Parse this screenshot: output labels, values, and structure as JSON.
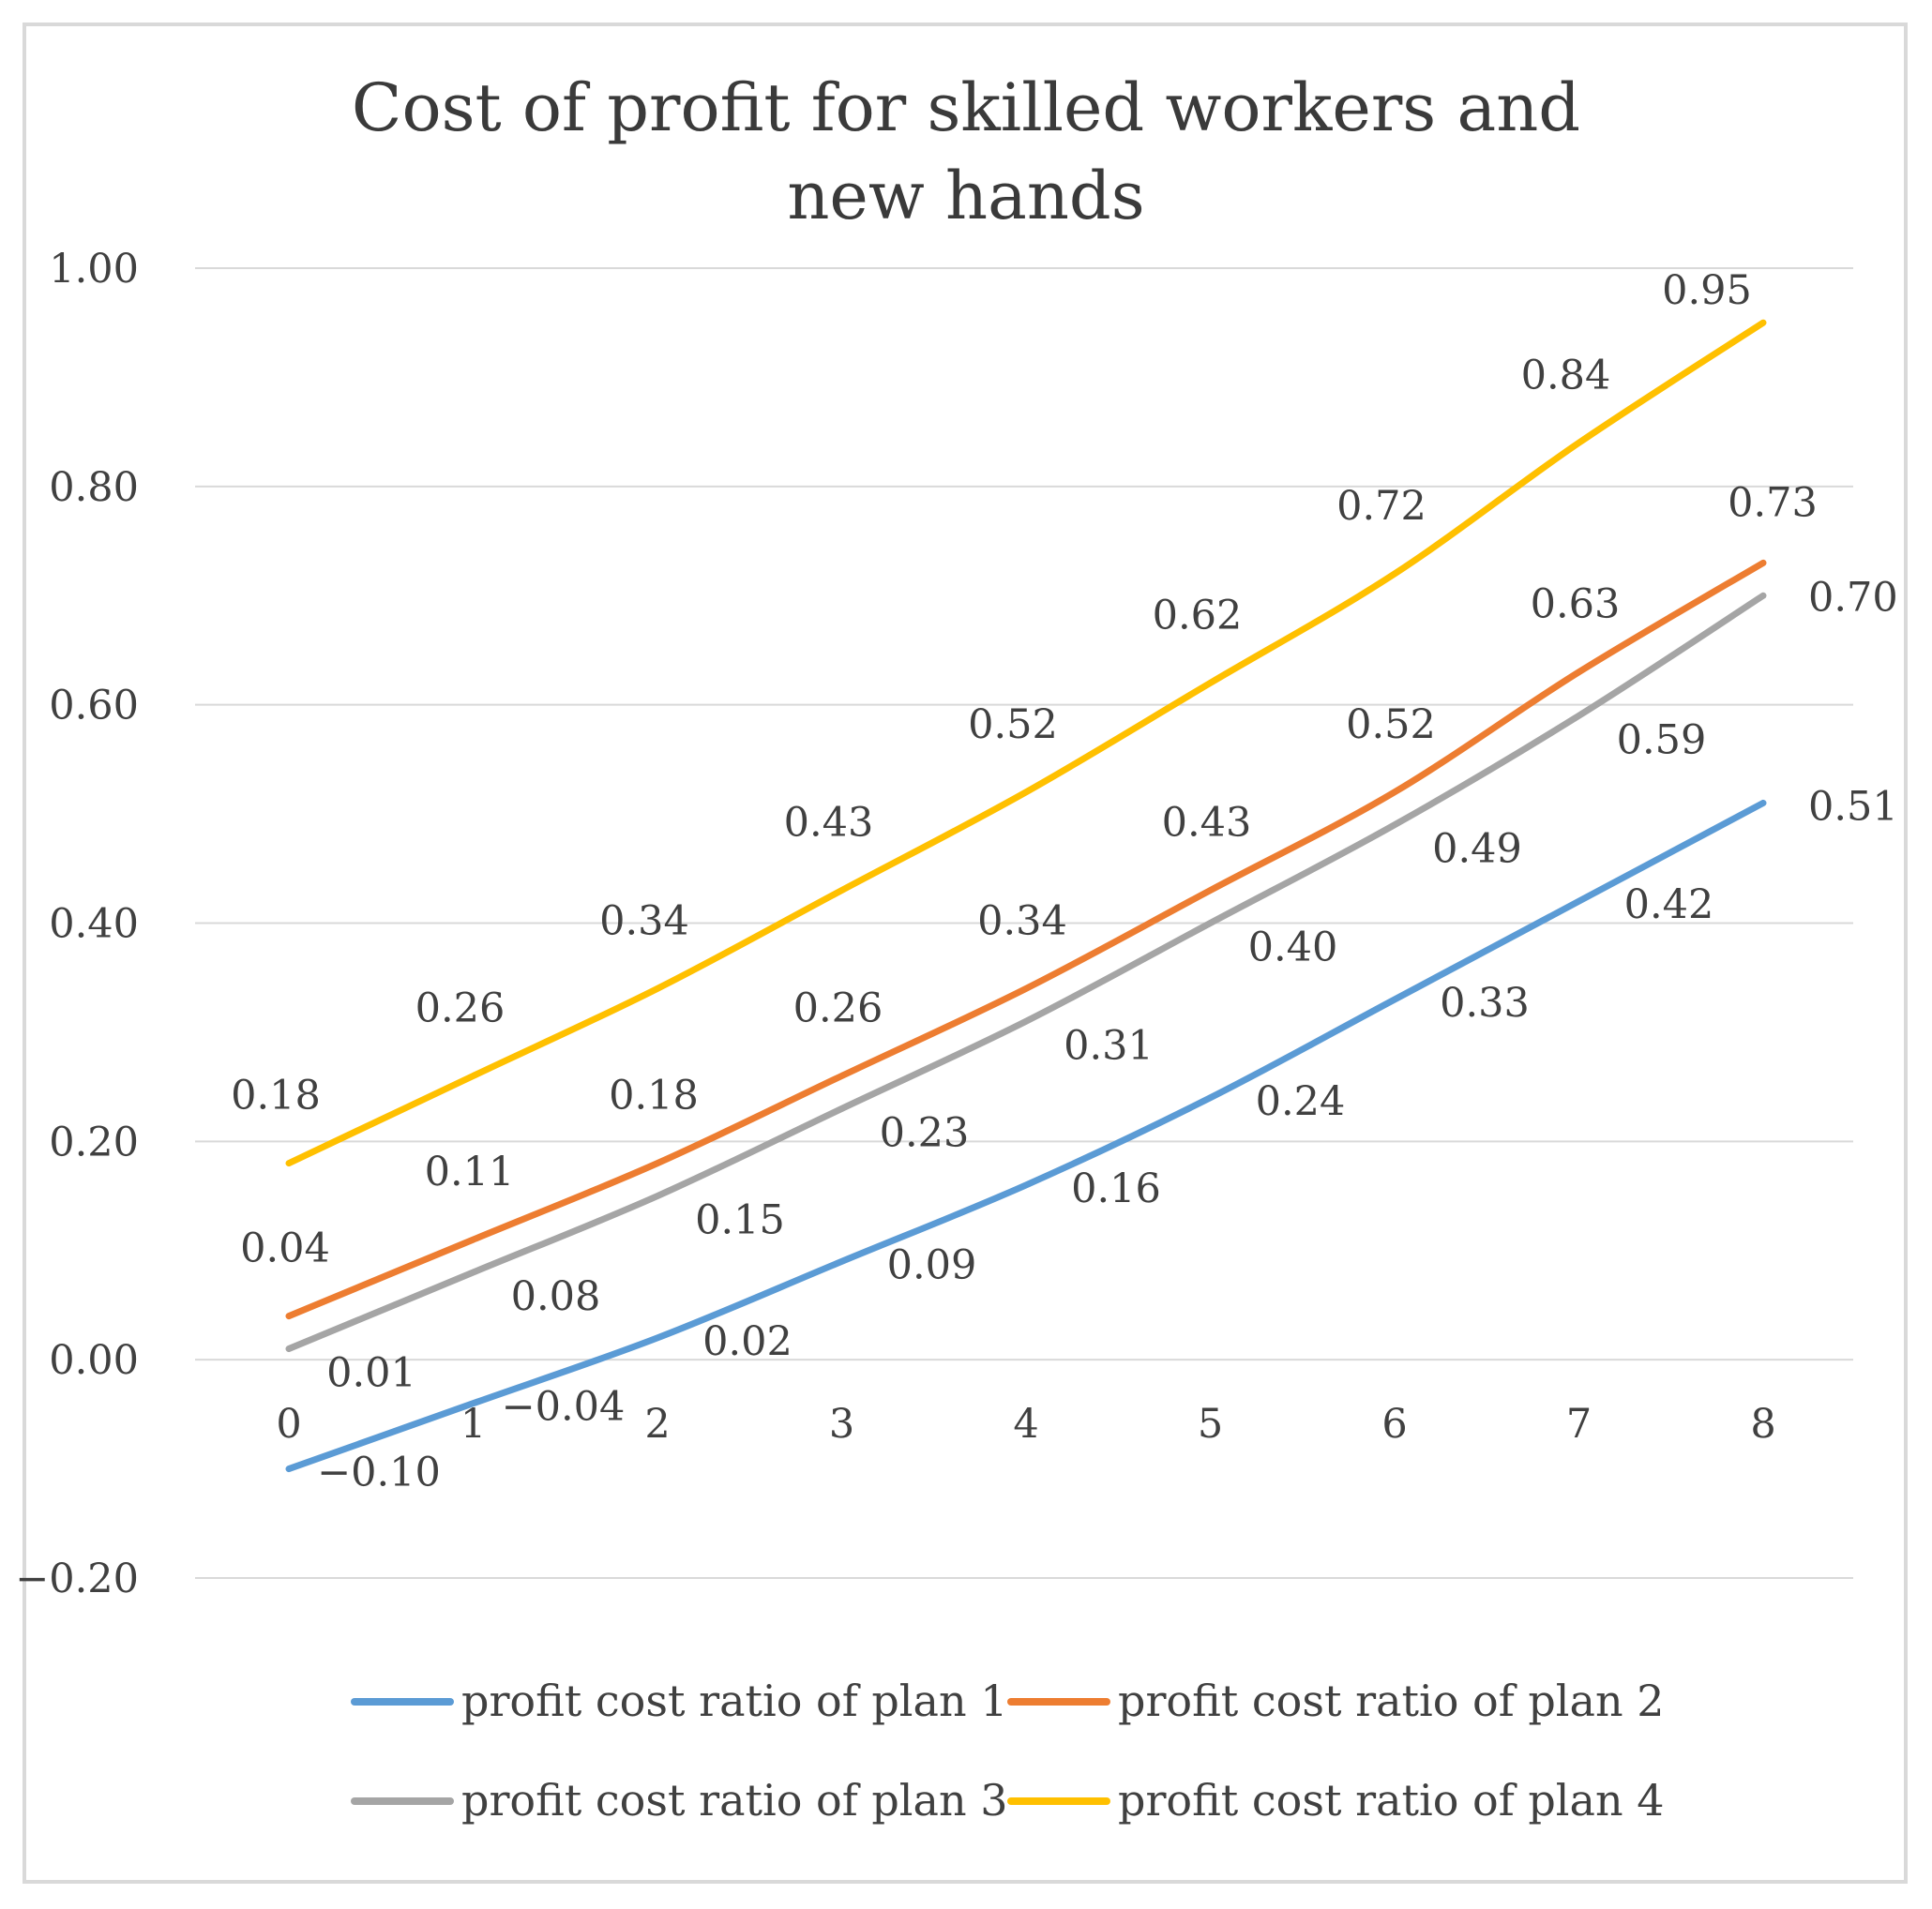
{
  "chart_data": {
    "type": "line",
    "title": "Cost of profit for skilled workers and new hands",
    "xlabel": "",
    "ylabel": "",
    "x": [
      0,
      1,
      2,
      3,
      4,
      5,
      6,
      7,
      8
    ],
    "x_tick_labels": [
      "0",
      "1",
      "2",
      "3",
      "4",
      "5",
      "6",
      "7",
      "8"
    ],
    "ylim": [
      -0.2,
      1.0
    ],
    "y_tick_labels": [
      "1.00",
      "0.80",
      "0.60",
      "0.40",
      "0.20",
      "0.00",
      "−0.20"
    ],
    "y_ticks": [
      1.0,
      0.8,
      0.6,
      0.4,
      0.2,
      0.0,
      -0.2
    ],
    "grid": "horizontal",
    "legend_position": "bottom",
    "series": [
      {
        "name": "profit cost ratio of plan 1",
        "color": "#5b9bd5",
        "values": [
          -0.1,
          -0.04,
          0.02,
          0.09,
          0.16,
          0.24,
          0.33,
          0.42,
          0.51
        ],
        "labels": [
          "−0.10",
          "−0.04",
          "0.02",
          "0.09",
          "0.16",
          "0.24",
          "0.33",
          "0.42",
          "0.51"
        ]
      },
      {
        "name": "profit cost ratio of plan 2",
        "color": "#ed7d31",
        "values": [
          0.04,
          0.11,
          0.18,
          0.26,
          0.34,
          0.43,
          0.52,
          0.63,
          0.73
        ],
        "labels": [
          "0.04",
          "0.11",
          "0.18",
          "0.26",
          "0.34",
          "0.43",
          "0.52",
          "0.63",
          "0.73"
        ]
      },
      {
        "name": "profit cost ratio of plan 3",
        "color": "#a5a5a5",
        "values": [
          0.01,
          0.08,
          0.15,
          0.23,
          0.31,
          0.4,
          0.49,
          0.59,
          0.7
        ],
        "labels": [
          "0.01",
          "0.08",
          "0.15",
          "0.23",
          "0.31",
          "0.40",
          "0.49",
          "0.59",
          "0.70"
        ]
      },
      {
        "name": "profit cost ratio of plan 4",
        "color": "#ffc000",
        "values": [
          0.18,
          0.26,
          0.34,
          0.43,
          0.52,
          0.62,
          0.72,
          0.84,
          0.95
        ],
        "labels": [
          "0.18",
          "0.26",
          "0.34",
          "0.43",
          "0.52",
          "0.62",
          "0.72",
          "0.84",
          "0.95"
        ]
      }
    ]
  }
}
